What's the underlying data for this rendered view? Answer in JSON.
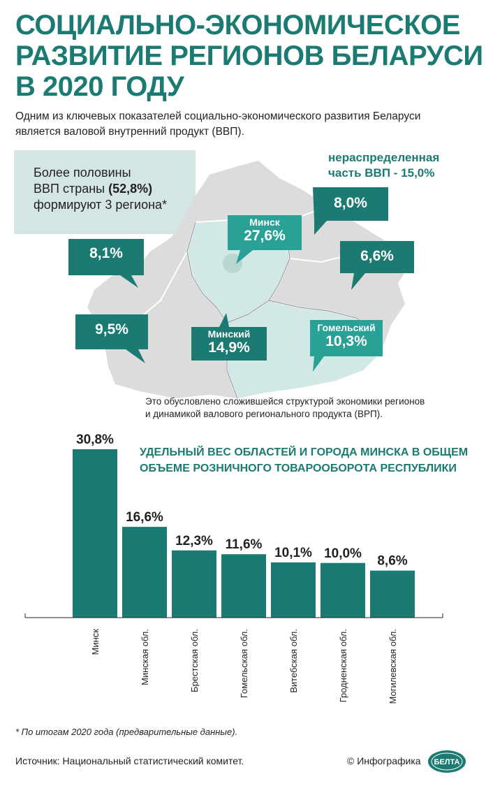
{
  "header": {
    "title_lines": [
      "СОЦИАЛЬНО-ЭКОНОМИЧЕСКОЕ",
      "РАЗВИТИЕ РЕГИОНОВ БЕЛАРУСИ",
      "В 2020 ГОДУ"
    ],
    "intro_line1": "Одним из ключевых показателей социально-экономического развития Беларуси",
    "intro_line2": "является валовой внутренний продукт (ВВП)."
  },
  "info_box": {
    "line1": "Более половины",
    "line2_pre": "ВВП страны ",
    "line2_bold": "(52,8%)",
    "line3": "формируют 3 региона*"
  },
  "map": {
    "undistributed_line1": "нераспределенная",
    "undistributed_line2": "часть ВВП - 15,0%",
    "regions": [
      {
        "id": "grodno",
        "label": "",
        "value": "8,1%"
      },
      {
        "id": "brest",
        "label": "",
        "value": "9,5%"
      },
      {
        "id": "minsk-city",
        "label": "Минск",
        "value": "27,6%"
      },
      {
        "id": "minsk-region",
        "label": "Минский",
        "value": "14,9%"
      },
      {
        "id": "vitebsk",
        "label": "",
        "value": "8,0%"
      },
      {
        "id": "mogilev",
        "label": "",
        "value": "6,6%"
      },
      {
        "id": "gomel",
        "label": "Гомельский",
        "value": "10,3%"
      }
    ],
    "note_line1": "Это обусловлено сложившейся структурой экономики регионов",
    "note_line2": "и динамикой валового регионального продукта (ВРП)."
  },
  "chart_data": {
    "type": "bar",
    "title": "УДЕЛЬНЫЙ ВЕС ОБЛАСТЕЙ И ГОРОДА МИНСКА В ОБЩЕМ ОБЪЕМЕ РОЗНИЧНОГО ТОВАРООБОРОТА РЕСПУБЛИКИ",
    "title_lines": [
      "УДЕЛЬНЫЙ ВЕС ОБЛАСТЕЙ И ГОРОДА МИНСКА В ОБЩЕМ",
      "ОБЪЕМЕ РОЗНИЧНОГО ТОВАРООБОРОТА РЕСПУБЛИКИ"
    ],
    "categories": [
      "Минск",
      "Минская обл.",
      "Брестская обл.",
      "Гомельская обл.",
      "Витебская обл.",
      "Гродненская обл.",
      "Могилевская обл."
    ],
    "values": [
      30.8,
      16.6,
      12.3,
      11.6,
      10.1,
      10.0,
      8.6
    ],
    "data_labels": [
      "30,8%",
      "16,6%",
      "12,3%",
      "11,6%",
      "10,1%",
      "10,0%",
      "8,6%"
    ],
    "ylim": [
      0,
      30.8
    ],
    "grid": false,
    "color": "#1b7a72"
  },
  "footer": {
    "footnote": "* По итогам 2020 года (предварительные данные).",
    "source": "Источник: Национальный статистический комитет.",
    "credit": "© Инфографика",
    "logo_text": "БЕЛТА"
  },
  "colors": {
    "accent": "#1b7a72",
    "accent_light": "#2aa197",
    "map_gray": "#dcdcdc",
    "map_highlight": "#d2e8e6",
    "info_box": "#d4e6e4"
  }
}
